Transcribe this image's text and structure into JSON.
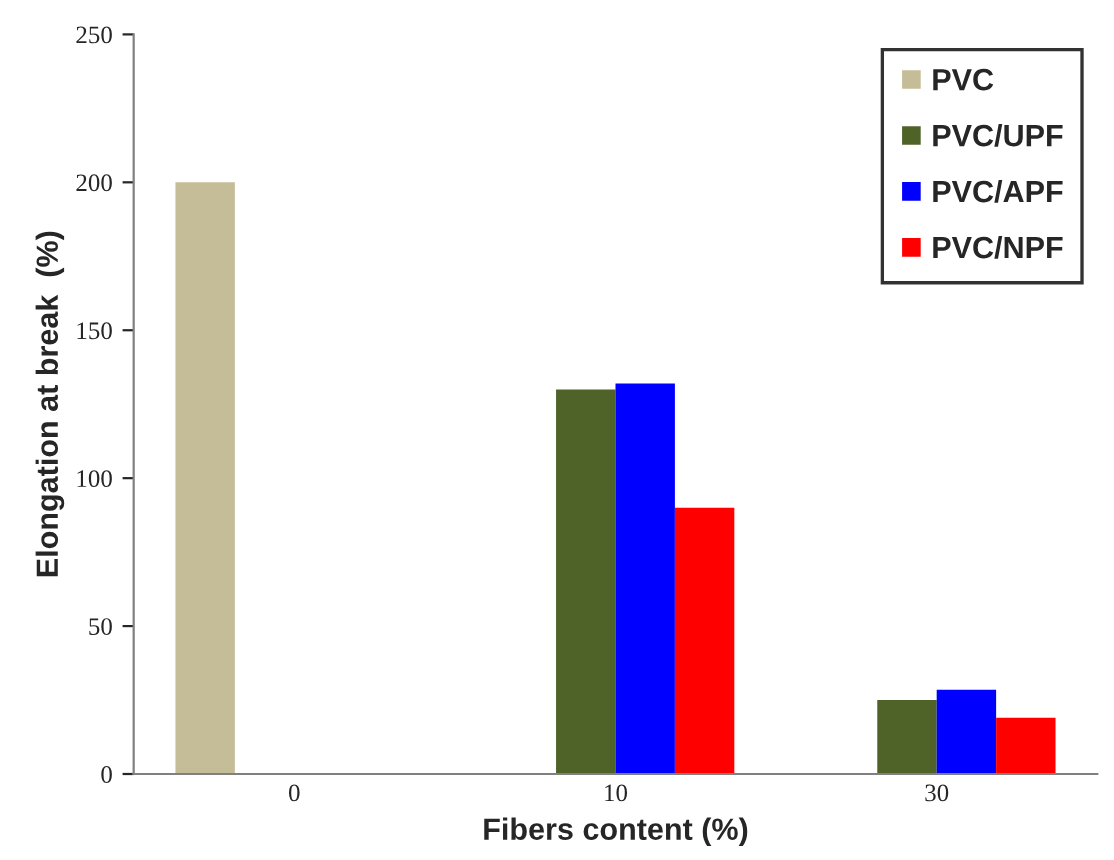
{
  "chart_data": {
    "type": "bar",
    "xlabel": "Fibers content (%)",
    "ylabel": "Elongation at break  (%)",
    "categories": [
      "0",
      "10",
      "30"
    ],
    "series": [
      {
        "name": "PVC",
        "color": "#c4bd97",
        "values": [
          200,
          null,
          null
        ]
      },
      {
        "name": "PVC/UPF",
        "color": "#4f6228",
        "values": [
          null,
          130,
          25
        ]
      },
      {
        "name": "PVC/APF",
        "color": "#0000ff",
        "values": [
          null,
          132,
          28.5
        ]
      },
      {
        "name": "PVC/NPF",
        "color": "#ff0000",
        "values": [
          null,
          90,
          19
        ]
      }
    ],
    "ylim": [
      0,
      250
    ],
    "yticks": [
      0,
      50,
      100,
      150,
      200,
      250
    ],
    "grid": false,
    "legend": "top right"
  }
}
